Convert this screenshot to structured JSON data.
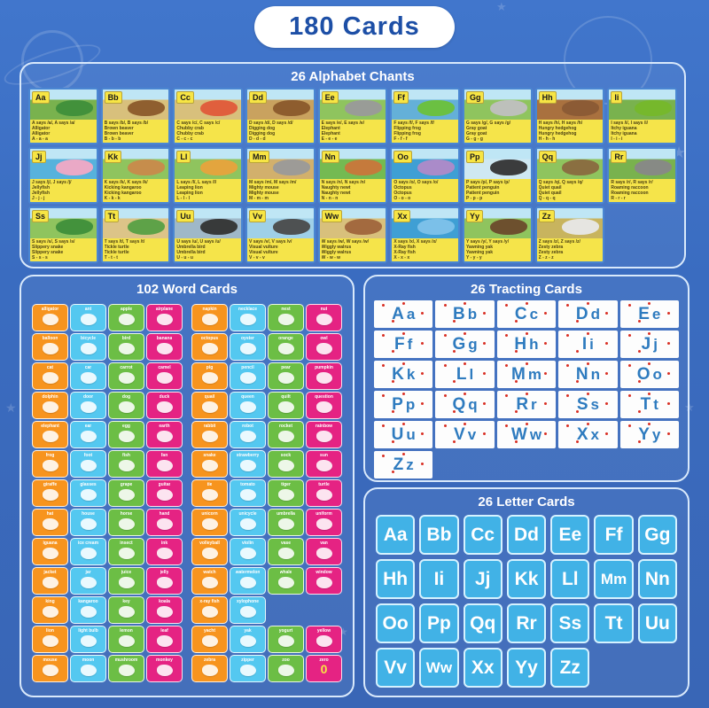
{
  "header": {
    "title": "180 Cards"
  },
  "colors": {
    "background": "#3a6cc0",
    "title_blue": "#1d4fa6",
    "chant_yellow": "#f5e44a",
    "trace_letter_blue": "#2e7bbf",
    "trace_dot_red": "#d93025",
    "letter_card_blue": "#41b2e6",
    "word_card_palette": [
      "#f7941e",
      "#54c8f0",
      "#6cbe45",
      "#e52383"
    ]
  },
  "alphabet_chants": {
    "title": "26 Alphabet Chants",
    "cards": [
      {
        "letter": "Aa",
        "ground": "#79b24e",
        "animal": "#3f8f3a",
        "lines": [
          "A says /a/, A says /a/",
          "Alligator",
          "Alligator",
          "A - a - a"
        ]
      },
      {
        "letter": "Bb",
        "ground": "#d8c07c",
        "animal": "#8b5a2b",
        "lines": [
          "B says /b/, B says /b/",
          "Brown beaver",
          "Brown beaver",
          "B - b - b"
        ]
      },
      {
        "letter": "Cc",
        "ground": "#d8c07c",
        "animal": "#e05a3a",
        "lines": [
          "C says /c/, C says /c/",
          "Chubby crab",
          "Chubby crab",
          "C - c - c"
        ]
      },
      {
        "letter": "Dd",
        "ground": "#c9a25f",
        "animal": "#8b5a2b",
        "lines": [
          "D says /d/, D says /d/",
          "Digging dog",
          "Digging dog",
          "D - d - d"
        ]
      },
      {
        "letter": "Ee",
        "ground": "#8fc45e",
        "animal": "#9a9a9a",
        "lines": [
          "E says /e/, E says /e/",
          "Elephant",
          "Elephant",
          "E - e - e"
        ]
      },
      {
        "letter": "Ff",
        "ground": "#64b0d8",
        "animal": "#6cc13a",
        "lines": [
          "F says /f/, F says /f/",
          "Flipping frog",
          "Flipping frog",
          "F - f - f"
        ]
      },
      {
        "letter": "Gg",
        "ground": "#8fc45e",
        "animal": "#c0c0c0",
        "lines": [
          "G says /g/, G says /g/",
          "Gray goat",
          "Gray goat",
          "G - g - g"
        ]
      },
      {
        "letter": "Hh",
        "ground": "#a9713f",
        "animal": "#8a5a35",
        "lines": [
          "H says /h/, H says /h/",
          "Hungry hedgehog",
          "Hungry hedgehog",
          "H - h - h"
        ]
      },
      {
        "letter": "Ii",
        "ground": "#79b24e",
        "animal": "#76b82a",
        "lines": [
          "I says /i/, I says /i/",
          "Itchy iguana",
          "Itchy iguana",
          "I - i - i"
        ]
      },
      {
        "letter": "Jj",
        "ground": "#57b2dc",
        "animal": "#f2a9c4",
        "lines": [
          "J says /j/, J says /j/",
          "Jellyfish",
          "Jellyfish",
          "J - j - j"
        ]
      },
      {
        "letter": "Kk",
        "ground": "#8fc45e",
        "animal": "#c98a4b",
        "lines": [
          "K says /k/, K says /k/",
          "Kicking kangaroo",
          "Kicking kangaroo",
          "K - k - k"
        ]
      },
      {
        "letter": "Ll",
        "ground": "#8fc45e",
        "animal": "#e8a33c",
        "lines": [
          "L says /l/, L says /l/",
          "Leaping lion",
          "Leaping lion",
          "L - l - l"
        ]
      },
      {
        "letter": "Mm",
        "ground": "#d2b06c",
        "animal": "#9a9a9a",
        "lines": [
          "M says /m/, M says /m/",
          "Mighty mouse",
          "Mighty mouse",
          "M - m - m"
        ]
      },
      {
        "letter": "Nn",
        "ground": "#74ba52",
        "animal": "#c9763b",
        "lines": [
          "N says /n/, N says /n/",
          "Naughty newt",
          "Naughty newt",
          "N - n - n"
        ]
      },
      {
        "letter": "Oo",
        "ground": "#3f9fd4",
        "animal": "#b08ac8",
        "lines": [
          "O says /o/, O says /o/",
          "Octopus",
          "Octopus",
          "O - o - o"
        ]
      },
      {
        "letter": "Pp",
        "ground": "#cfe8f2",
        "animal": "#333333",
        "lines": [
          "P says /p/, P says /p/",
          "Patient penguin",
          "Patient penguin",
          "P - p - p"
        ]
      },
      {
        "letter": "Qq",
        "ground": "#8fc45e",
        "animal": "#8a6a3f",
        "lines": [
          "Q says /q/, Q says /q/",
          "Quiet quail",
          "Quiet quail",
          "Q - q - q"
        ]
      },
      {
        "letter": "Rr",
        "ground": "#79b24e",
        "animal": "#888888",
        "lines": [
          "R says /r/, R says /r/",
          "Roaming raccoon",
          "Roaming raccoon",
          "R - r - r"
        ]
      },
      {
        "letter": "Ss",
        "ground": "#8fc45e",
        "animal": "#3f8f3a",
        "lines": [
          "S says /s/, S says /s/",
          "Slippery snake",
          "Slippery snake",
          "S - s - s"
        ]
      },
      {
        "letter": "Tt",
        "ground": "#dcc488",
        "animal": "#56a045",
        "lines": [
          "T says /t/, T says /t/",
          "Tickle turtle",
          "Tickle turtle",
          "T - t - t"
        ]
      },
      {
        "letter": "Uu",
        "ground": "#9fb8c8",
        "animal": "#333333",
        "lines": [
          "U says /u/, U says /u/",
          "Umbrella bird",
          "Umbrella bird",
          "U - u - u"
        ]
      },
      {
        "letter": "Vv",
        "ground": "#9fd0e8",
        "animal": "#4a4a4a",
        "lines": [
          "V says /v/, V says /v/",
          "Visual vulture",
          "Visual vulture",
          "V - v - v"
        ]
      },
      {
        "letter": "Ww",
        "ground": "#d8c07c",
        "animal": "#a0653c",
        "lines": [
          "W says /w/, W says /w/",
          "Wiggly walrus",
          "Wiggly walrus",
          "W - w - w"
        ]
      },
      {
        "letter": "Xx",
        "ground": "#3f9fd4",
        "animal": "#7ec2ea",
        "lines": [
          "X says /x/, X says /x/",
          "X-Ray fish",
          "X-Ray fish",
          "X - x - x"
        ]
      },
      {
        "letter": "Yy",
        "ground": "#8fc45e",
        "animal": "#6b4a2b",
        "lines": [
          "Y says /y/, Y says /y/",
          "Yawning yak",
          "Yawning yak",
          "Y - y - y"
        ]
      },
      {
        "letter": "Zz",
        "ground": "#c8b45e",
        "animal": "#e8e8e8",
        "lines": [
          "Z says /z/, Z says /z/",
          "Zesty zebra",
          "Zesty zebra",
          "Z - z - z"
        ]
      }
    ]
  },
  "word_cards": {
    "title": "102 Word Cards",
    "palette": [
      "#f7941e",
      "#54c8f0",
      "#6cbe45",
      "#e52383"
    ],
    "left": [
      "alligator",
      "ant",
      "apple",
      "airplane",
      "balloon",
      "bicycle",
      "bird",
      "banana",
      "cat",
      "car",
      "carrot",
      "camel",
      "dolphin",
      "door",
      "dog",
      "duck",
      "elephant",
      "ear",
      "egg",
      "earth",
      "frog",
      "foot",
      "fish",
      "fan",
      "giraffe",
      "glasses",
      "grape",
      "guitar",
      "hat",
      "house",
      "horse",
      "hand",
      "iguana",
      "ice cream",
      "insect",
      "ink",
      "jacket",
      "jar",
      "juice",
      "jelly",
      "king",
      "kangaroo",
      "key",
      "koala",
      "lion",
      "light bulb",
      "lemon",
      "leaf",
      "mouse",
      "moon",
      "mushroom",
      "monkey"
    ],
    "right": [
      "napkin",
      "necklace",
      "nest",
      "nut",
      "octopus",
      "oyster",
      "orange",
      "owl",
      "pig",
      "pencil",
      "pear",
      "pumpkin",
      "quail",
      "queen",
      "quilt",
      "question",
      "rabbit",
      "robot",
      "rocket",
      "rainbow",
      "snake",
      "strawberry",
      "sock",
      "sun",
      "tie",
      "tomato",
      "tiger",
      "turtle",
      "unicorn",
      "unicycle",
      "umbrella",
      "uniform",
      "volleyball",
      "violin",
      "vase",
      "van",
      "watch",
      "watermelon",
      "whale",
      "window",
      "x-ray fish",
      "xylophone",
      null,
      null,
      "yacht",
      "yak",
      "yogurt",
      "yellow",
      "zebra",
      "zipper",
      "zoo",
      "zero"
    ]
  },
  "tracting_cards": {
    "title": "26 Tracting Cards",
    "letters": [
      "Aa",
      "Bb",
      "Cc",
      "Dd",
      "Ee",
      "Ff",
      "Gg",
      "Hh",
      "Ii",
      "Jj",
      "Kk",
      "Ll",
      "Mm",
      "Nn",
      "Oo",
      "Pp",
      "Qq",
      "Rr",
      "Ss",
      "Tt",
      "Uu",
      "Vv",
      "Ww",
      "Xx",
      "Yy",
      "Zz"
    ]
  },
  "letter_cards": {
    "title": "26 Letter Cards",
    "letters": [
      "Aa",
      "Bb",
      "Cc",
      "Dd",
      "Ee",
      "Ff",
      "Gg",
      "Hh",
      "Ii",
      "Jj",
      "Kk",
      "Ll",
      "Mm",
      "Nn",
      "Oo",
      "Pp",
      "Qq",
      "Rr",
      "Ss",
      "Tt",
      "Uu",
      "Vv",
      "Ww",
      "Xx",
      "Yy",
      "Zz"
    ]
  }
}
